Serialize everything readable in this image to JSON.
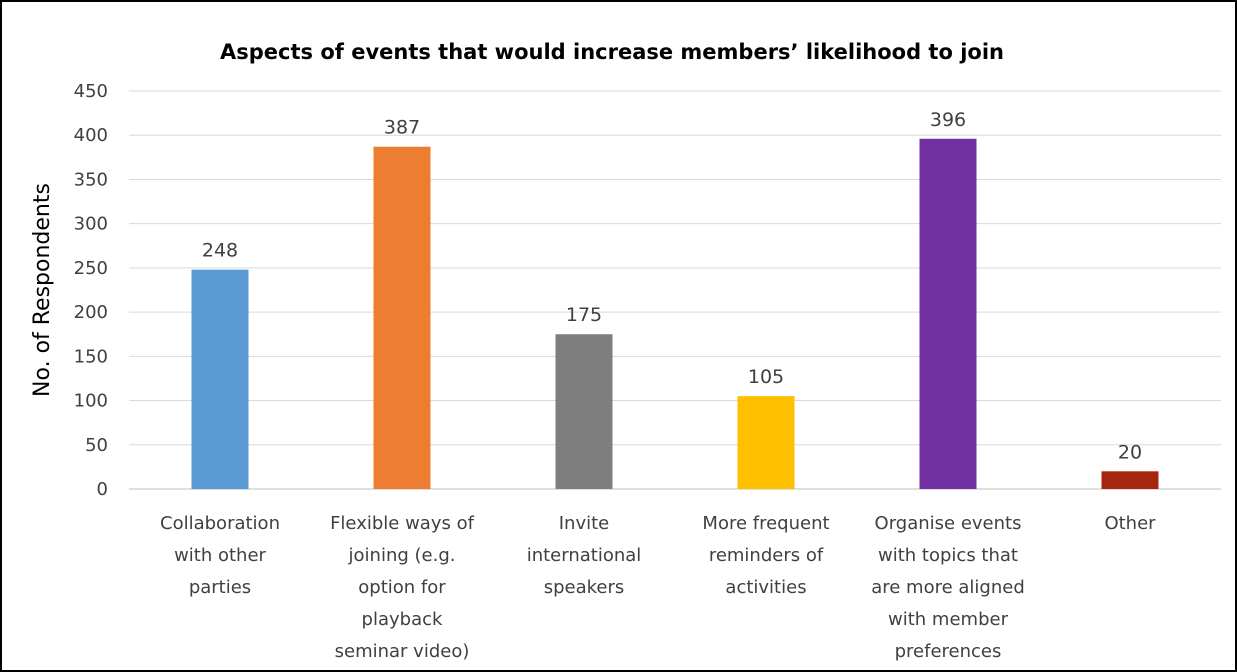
{
  "chart_data": {
    "type": "bar",
    "title": "Aspects of events that would increase members’ likelihood  to join",
    "ylabel": "No. of Respondents",
    "xlabel": "",
    "ylim": [
      0,
      450
    ],
    "yticks": [
      0,
      50,
      100,
      150,
      200,
      250,
      300,
      350,
      400,
      450
    ],
    "grid": true,
    "legend": "none",
    "categories": [
      [
        "Collaboration",
        "with other",
        "parties"
      ],
      [
        "Flexible ways of",
        "joining (e.g.",
        "option for",
        "playback",
        "seminar video)"
      ],
      [
        "Invite",
        "international",
        "speakers"
      ],
      [
        "More frequent",
        "reminders of",
        "activities"
      ],
      [
        "Organise events",
        "with topics that",
        "are more aligned",
        "with member",
        "preferences"
      ],
      [
        "Other"
      ]
    ],
    "values": [
      248,
      387,
      175,
      105,
      396,
      20
    ],
    "colors": [
      "#5b9bd5",
      "#ed7d31",
      "#7f7f7f",
      "#ffc000",
      "#7030a0",
      "#a5270f"
    ]
  }
}
